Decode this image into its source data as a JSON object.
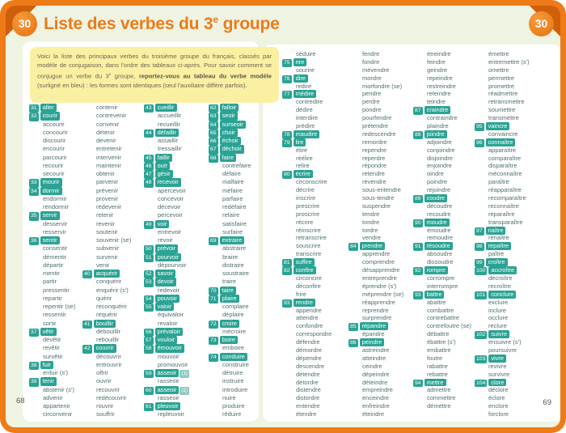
{
  "header": {
    "lesson_number": "30",
    "title_prefix": "Liste des verbes du 3",
    "title_sup": "e",
    "title_suffix": " groupe"
  },
  "intro": {
    "parts": [
      {
        "text": "Voici la liste des principaux verbes du troisième groupe du français, classés par modèle de conjugaison, dans l'ordre des tableaux ci-après. Pour savoir comment se conjugue un verbe du 3"
      },
      {
        "text": "e",
        "sup": true
      },
      {
        "text": " groupe, "
      },
      {
        "text": "reportez-vous au tableau du verbe modèle",
        "bold": true
      },
      {
        "text": " (surligné en bleu) : les formes sont identiques (seul l'auxiliaire diffère parfois)."
      }
    ]
  },
  "colors": {
    "frame_orange": "#ee7b18",
    "ribbon_orange": "#cf5f0b",
    "highlight_teal": "#2aa394",
    "intro_yellow": "#fbf0a2",
    "page_background": "#eef3e2",
    "verb_text": "#4f6f6e"
  },
  "pages": [
    {
      "page_number": "68",
      "columns": [
        [
          {
            "n": "31",
            "v": "aller"
          },
          {
            "n": "32",
            "v": "courir"
          },
          "accourir",
          "concourir",
          "discourir",
          "encourir",
          "parcourir",
          "recourir",
          "secourir",
          {
            "n": "33",
            "v": "mourir"
          },
          {
            "n": "34",
            "v": "dormir"
          },
          "endormir",
          "rendormir",
          {
            "n": "35",
            "v": "servir"
          },
          "desservir",
          "resservir",
          {
            "n": "36",
            "v": "sentir"
          },
          "consentir",
          "démentir",
          "départir",
          "mentir",
          "partir",
          "pressentir",
          "repartir",
          "repentir (se)",
          "ressentir",
          "sortir",
          {
            "n": "37",
            "v": "vêtir"
          },
          "dévêtir",
          "revêtir",
          "survêtir",
          {
            "n": "38",
            "v": "fuir"
          },
          "enfuir (s')",
          {
            "n": "39",
            "v": "tenir"
          },
          "abstenir (s')",
          "advenir",
          "appartenir",
          "circonvenir"
        ],
        [
          "contenir",
          "contrevenir",
          "convenir",
          "détenir",
          "devenir",
          "entretenir",
          "intervenir",
          "maintenir",
          "obtenir",
          "parvenir",
          "prévenir",
          "provenir",
          "redevenir",
          "retenir",
          "revenir",
          "soutenir",
          "souvenir (se)",
          "subvenir",
          "survenir",
          "venir",
          {
            "n": "40",
            "v": "acquérir"
          },
          "conquérir",
          "enquérir (s')",
          "quérir",
          "reconquérir",
          "requérir",
          {
            "n": "41",
            "v": "bouillir"
          },
          "débouillir",
          "rebouillir",
          {
            "n": "42",
            "v": "couvrir"
          },
          "découvrir",
          "entrouvrir",
          "offrir",
          "ouvrir",
          "recouvrir",
          "redécouvrir",
          "rouvrir",
          "souffrir"
        ],
        [
          {
            "n": "43",
            "v": "cueillir"
          },
          "accueillir",
          "recueillir",
          {
            "n": "44",
            "v": "défaillir"
          },
          "assaillir",
          "tressaillir",
          {
            "n": "45",
            "v": "faillir"
          },
          {
            "n": "46",
            "v": "ouïr"
          },
          {
            "n": "47",
            "v": "gésir"
          },
          {
            "n": "48",
            "v": "recevoir"
          },
          "apercevoir",
          "concevoir",
          "décevoir",
          "percevoir",
          {
            "n": "49",
            "v": "voir"
          },
          "entrevoir",
          "revoir",
          {
            "n": "50",
            "v": "prévoir"
          },
          {
            "n": "51",
            "v": "pourvoir"
          },
          "dépourvoir",
          {
            "n": "52",
            "v": "savoir"
          },
          {
            "n": "53",
            "v": "devoir"
          },
          "redevoir",
          {
            "n": "54",
            "v": "pouvoir"
          },
          {
            "n": "55",
            "v": "valoir"
          },
          "équivaloir",
          "revaloir",
          {
            "n": "56",
            "v": "prévaloir"
          },
          {
            "n": "57",
            "v": "vouloir"
          },
          {
            "n": "58",
            "v": "émouvoir"
          },
          "mouvoir",
          "promouvoir",
          {
            "n": "59",
            "v": "asseoir",
            "tag": "(1)"
          },
          "rasseoir",
          {
            "n": "60",
            "v": "asseoir",
            "tag": "(2)"
          },
          "rasseoir",
          {
            "n": "61",
            "v": "pleuvoir"
          },
          "repleuvoir"
        ],
        [
          {
            "n": "62",
            "v": "falloir"
          },
          {
            "n": "63",
            "v": "seoir"
          },
          {
            "n": "64",
            "v": "surseoir"
          },
          {
            "n": "65",
            "v": "choir"
          },
          {
            "n": "66",
            "v": "échoir"
          },
          {
            "n": "67",
            "v": "déchoir"
          },
          {
            "n": "68",
            "v": "faire"
          },
          "contrefaire",
          "défaire",
          "malfaire",
          "méfaire",
          "parfaire",
          "redéfaire",
          "refaire",
          "satisfaire",
          "surfaire",
          {
            "n": "69",
            "v": "extraire"
          },
          "abstraire",
          "braire",
          "distraire",
          "soustraire",
          "traire",
          {
            "n": "70",
            "v": "taire"
          },
          {
            "n": "71",
            "v": "plaire"
          },
          "complaire",
          "déplaire",
          {
            "n": "72",
            "v": "croire"
          },
          "mécroire",
          {
            "n": "73",
            "v": "boire"
          },
          "emboire",
          {
            "n": "74",
            "v": "conduire"
          },
          "construire",
          "détruire",
          "instruire",
          "introduire",
          "nuire",
          "produire",
          "réduire"
        ]
      ]
    },
    {
      "page_number": "69",
      "columns": [
        [
          "séduire",
          {
            "n": "75",
            "v": "rire"
          },
          "sourire",
          {
            "n": "76",
            "v": "dire"
          },
          "redire",
          {
            "n": "77",
            "v": "médire"
          },
          "contredire",
          "dédire",
          "interdire",
          "prédire",
          {
            "n": "78",
            "v": "maudire"
          },
          {
            "n": "79",
            "v": "lire"
          },
          "élire",
          "réélire",
          "relire",
          {
            "n": "80",
            "v": "écrire"
          },
          "circonscrire",
          "décrire",
          "inscrire",
          "prescrire",
          "proscrire",
          "récrire",
          "réinscrire",
          "retranscrire",
          "souscrire",
          "transcrire",
          {
            "n": "81",
            "v": "suffire"
          },
          {
            "n": "82",
            "v": "confire"
          },
          "circoncire",
          "déconfire",
          "frire",
          {
            "n": "83",
            "v": "rendre"
          },
          "appendre",
          "attendre",
          "confondre",
          "correspondre",
          "défendre",
          "démordre",
          "dépendre",
          "descendre",
          "détendre",
          "détordre",
          "distendre",
          "distordre",
          "entendre",
          "étendre"
        ],
        [
          "fendre",
          "fondre",
          "mévendre",
          "mordre",
          "morfondre (se)",
          "pendre",
          "perdre",
          "pondre",
          "pourfendre",
          "prétendre",
          "redescendre",
          "remordre",
          "rependre",
          "reperdre",
          "répondre",
          "retendre",
          "revendre",
          "sous-entendre",
          "sous-tendre",
          "suspendre",
          "tendre",
          "tondre",
          "tordre",
          "vendre",
          {
            "n": "84",
            "v": "prendre"
          },
          "apprendre",
          "comprendre",
          "désapprendre",
          "entreprendre",
          "éprendre (s')",
          "méprendre (se)",
          "réapprendre",
          "reprendre",
          "surprendre",
          {
            "n": "85",
            "v": "répandre"
          },
          "épandre",
          {
            "n": "86",
            "v": "peindre"
          },
          "astreindre",
          "atteindre",
          "ceindre",
          "dépeindre",
          "déteindre",
          "empreindre",
          "enceindre",
          "enfreindre",
          "éteindre"
        ],
        [
          "étreindre",
          "feindre",
          "geindre",
          "repeindre",
          "restreindre",
          "reteindre",
          "teindre",
          {
            "n": "87",
            "v": "craindre"
          },
          "contraindre",
          "plaindre",
          {
            "n": "88",
            "v": "joindre"
          },
          "adjoindre",
          "conjoindre",
          "disjoindre",
          "enjoindre",
          "oindre",
          "poindre",
          "rejoindre",
          {
            "n": "89",
            "v": "coudre"
          },
          "découdre",
          "recoudre",
          {
            "n": "90",
            "v": "moudre"
          },
          "émoudre",
          "remoudre",
          {
            "n": "91",
            "v": "résoudre"
          },
          "absoudre",
          "dissoudre",
          {
            "n": "92",
            "v": "rompre"
          },
          "corrompre",
          "interrompre",
          {
            "n": "93",
            "v": "battre"
          },
          "abattre",
          "combattre",
          "contrebattre",
          "contrefoutre (se)",
          "débattre",
          "ébattre (s')",
          "embattre",
          "foutre",
          "rabattre",
          "rebattre",
          {
            "n": "94",
            "v": "mettre"
          },
          "admettre",
          "commettre",
          "démettre"
        ],
        [
          "émettre",
          "entremettre (s')",
          "omettre",
          "permettre",
          "promettre",
          "réadmettre",
          "retransmettre",
          "soumettre",
          "transmettre",
          {
            "n": "95",
            "v": "vaincre"
          },
          "convaincre",
          {
            "n": "96",
            "v": "connaître"
          },
          "apparaître",
          "comparaître",
          "disparaître",
          "méconnaître",
          "paraître",
          "réapparaître",
          "recomparaître",
          "reconnaître",
          "reparaître",
          "transparaître",
          {
            "n": "97",
            "v": "naître"
          },
          "renaître",
          {
            "n": "98",
            "v": "repaître"
          },
          "paître",
          {
            "n": "99",
            "v": "croître"
          },
          {
            "n": "100",
            "v": "accroître"
          },
          "décroître",
          "recroître",
          {
            "n": "101",
            "v": "conclure"
          },
          "exclure",
          "inclure",
          "occlure",
          "reclure",
          {
            "n": "102",
            "v": "suivre"
          },
          "ensuivre (s')",
          "poursuivre",
          {
            "n": "103",
            "v": "vivre"
          },
          "revivre",
          "survivre",
          {
            "n": "104",
            "v": "clore"
          },
          "déclore",
          "éclore",
          "enclore",
          "forclore"
        ]
      ]
    }
  ]
}
